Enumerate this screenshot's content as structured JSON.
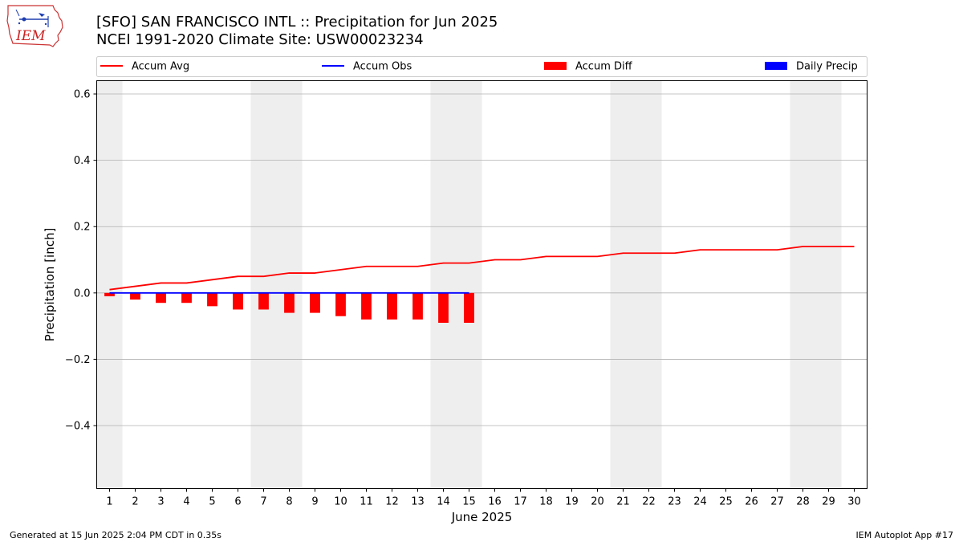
{
  "header": {
    "title_line1": "[SFO] SAN FRANCISCO INTL :: Precipitation for Jun 2025",
    "title_line2": "NCEI 1991-2020 Climate Site: USW00023234"
  },
  "logo": {
    "text": "IEM",
    "icon": "iem-logo-icon"
  },
  "footer": {
    "left": "Generated at 15 Jun 2025 2:04 PM CDT in 0.35s",
    "right": "IEM Autoplot App #17"
  },
  "chart_data": {
    "type": "bar",
    "xlabel": "June 2025",
    "ylabel": "Precipitation [inch]",
    "ylim": [
      -0.59,
      0.64
    ],
    "yticks": [
      -0.4,
      -0.2,
      0.0,
      0.2,
      0.4,
      0.6
    ],
    "ytick_labels": [
      "−0.4",
      "−0.2",
      "0.0",
      "0.2",
      "0.4",
      "0.6"
    ],
    "xlim": [
      0.5,
      30.5
    ],
    "days": [
      1,
      2,
      3,
      4,
      5,
      6,
      7,
      8,
      9,
      10,
      11,
      12,
      13,
      14,
      15,
      16,
      17,
      18,
      19,
      20,
      21,
      22,
      23,
      24,
      25,
      26,
      27,
      28,
      29,
      30
    ],
    "weekend_days": [
      1,
      7,
      8,
      14,
      15,
      21,
      22,
      28,
      29
    ],
    "grid": "horizontal",
    "legend_position": "top",
    "legend": [
      {
        "label": "Accum Avg",
        "kind": "line",
        "color": "#ff0000"
      },
      {
        "label": "Accum Obs",
        "kind": "line",
        "color": "#0000ff"
      },
      {
        "label": "Accum Diff",
        "kind": "bar",
        "color": "#ff0000"
      },
      {
        "label": "Daily Precip",
        "kind": "bar",
        "color": "#0000ff"
      }
    ],
    "series": [
      {
        "name": "Accum Avg",
        "kind": "line",
        "color": "#ff0000",
        "x": [
          1,
          2,
          3,
          4,
          5,
          6,
          7,
          8,
          9,
          10,
          11,
          12,
          13,
          14,
          15,
          16,
          17,
          18,
          19,
          20,
          21,
          22,
          23,
          24,
          25,
          26,
          27,
          28,
          29,
          30
        ],
        "values": [
          0.01,
          0.02,
          0.03,
          0.03,
          0.04,
          0.05,
          0.05,
          0.06,
          0.06,
          0.07,
          0.08,
          0.08,
          0.08,
          0.09,
          0.09,
          0.1,
          0.1,
          0.11,
          0.11,
          0.11,
          0.12,
          0.12,
          0.12,
          0.13,
          0.13,
          0.13,
          0.13,
          0.14,
          0.14,
          0.14
        ]
      },
      {
        "name": "Accum Obs",
        "kind": "line",
        "color": "#0000ff",
        "x": [
          1,
          2,
          3,
          4,
          5,
          6,
          7,
          8,
          9,
          10,
          11,
          12,
          13,
          14,
          15
        ],
        "values": [
          0,
          0,
          0,
          0,
          0,
          0,
          0,
          0,
          0,
          0,
          0,
          0,
          0,
          0,
          0
        ]
      },
      {
        "name": "Accum Diff",
        "kind": "bar",
        "color": "#ff0000",
        "x": [
          1,
          2,
          3,
          4,
          5,
          6,
          7,
          8,
          9,
          10,
          11,
          12,
          13,
          14,
          15
        ],
        "values": [
          -0.01,
          -0.02,
          -0.03,
          -0.03,
          -0.04,
          -0.05,
          -0.05,
          -0.06,
          -0.06,
          -0.07,
          -0.08,
          -0.08,
          -0.08,
          -0.09,
          -0.09
        ]
      },
      {
        "name": "Daily Precip",
        "kind": "bar",
        "color": "#0000ff",
        "x": [
          1,
          2,
          3,
          4,
          5,
          6,
          7,
          8,
          9,
          10,
          11,
          12,
          13,
          14,
          15
        ],
        "values": [
          0,
          0,
          0,
          0,
          0,
          0,
          0,
          0,
          0,
          0,
          0,
          0,
          0,
          0,
          0
        ]
      }
    ]
  }
}
